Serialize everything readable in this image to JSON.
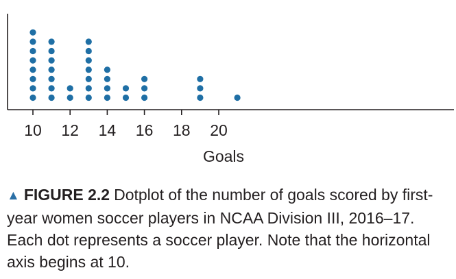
{
  "chart_data": {
    "type": "dotplot",
    "xlabel": "Goals",
    "xlim": [
      10,
      21
    ],
    "xticks": [
      10,
      12,
      14,
      16,
      18,
      20
    ],
    "x": [
      10,
      11,
      12,
      13,
      14,
      15,
      16,
      19,
      21
    ],
    "counts": [
      8,
      7,
      2,
      7,
      4,
      2,
      3,
      3,
      1
    ],
    "dot_color": "#1f6fa5",
    "grid": false,
    "legend": "none"
  },
  "caption": {
    "triangle": "▲",
    "label": "FIGURE 2.2",
    "text": "Dotplot of the number of goals scored by first-year women soccer players in NCAA Division III, 2016–17. Each dot represents a soccer player. Note that the horizontal axis begins at 10."
  },
  "colors": {
    "axis": "#231f20",
    "accent": "#2a6fa6"
  }
}
